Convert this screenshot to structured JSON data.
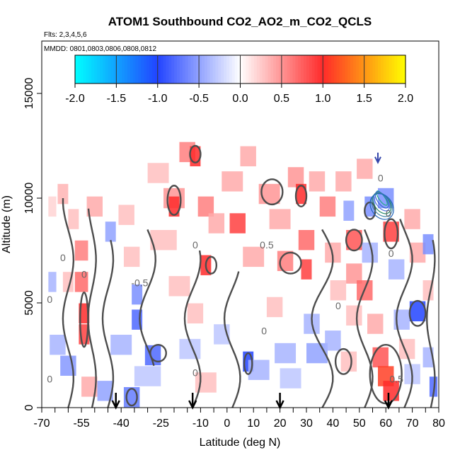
{
  "chart_data": {
    "type": "heatmap",
    "title": "ATOM1 Southbound CO2_AO2_m_CO2_QCLS",
    "subtitle_flights": "Flts: 2,3,4,5,6",
    "subtitle_dates": "MMDD: 0801,0803,0806,0808,0812",
    "xlabel": "Latitude (deg N)",
    "ylabel": "Altitude (m)",
    "xlim": [
      -70,
      80
    ],
    "ylim": [
      0,
      17500
    ],
    "x_ticks": [
      "-70",
      "-55",
      "-40",
      "-25",
      "-10",
      "0",
      "10",
      "20",
      "30",
      "40",
      "50",
      "60",
      "70",
      "80"
    ],
    "x_tick_values": [
      -70,
      -55,
      -40,
      -25,
      -10,
      0,
      10,
      20,
      30,
      40,
      50,
      60,
      70,
      80
    ],
    "x_minor_ticks": [
      -65,
      -60,
      -50,
      -45,
      -35,
      -30,
      -20,
      -15,
      -5,
      5,
      15,
      25,
      35,
      45,
      55,
      65,
      75
    ],
    "y_ticks": [
      "0",
      "5000",
      "10000",
      "15000"
    ],
    "y_tick_values": [
      0,
      5000,
      10000,
      15000
    ],
    "colorbar": {
      "range": [
        -2.0,
        2.0
      ],
      "tick_labels": [
        "-2.0",
        "-1.5",
        "-1.0",
        "-0.5",
        "0.0",
        "0.5",
        "1.0",
        "1.5",
        "2.0"
      ],
      "tick_values": [
        -2.0,
        -1.5,
        -1.0,
        -0.5,
        0.0,
        0.5,
        1.0,
        1.5,
        2.0
      ],
      "colors": [
        "#00ffff",
        "#2244ff",
        "#ffffff",
        "#ff2a2a",
        "#ffff00"
      ]
    },
    "contour_labels": [
      {
        "text": "0",
        "lat": -62,
        "alt": 7000
      },
      {
        "text": "0",
        "lat": -67,
        "alt": 5000
      },
      {
        "text": "0",
        "lat": -67,
        "alt": 1200
      },
      {
        "text": "0",
        "lat": -54,
        "alt": 6200
      },
      {
        "text": "-0.5",
        "lat": -33,
        "alt": 5800
      },
      {
        "text": "0",
        "lat": -12,
        "alt": 7600
      },
      {
        "text": "0",
        "lat": -12,
        "alt": 1500
      },
      {
        "text": "0",
        "lat": 14,
        "alt": 3500
      },
      {
        "text": "0.5",
        "lat": 15,
        "alt": 7600
      },
      {
        "text": "0",
        "lat": 42,
        "alt": 4700
      },
      {
        "text": "0",
        "lat": 58,
        "alt": 10800
      },
      {
        "text": "0",
        "lat": 62,
        "alt": 7200
      },
      {
        "text": "0",
        "lat": 61,
        "alt": 9100
      },
      {
        "text": "0.5",
        "lat": 64,
        "alt": 1200
      }
    ],
    "flight_arrows_lat": [
      -42,
      -13,
      20,
      61
    ],
    "upper_arrow": {
      "lat": 57,
      "alt": 11700
    },
    "cells": [
      {
        "lat": -66,
        "alt": 9600,
        "w": 3,
        "v": 0.2
      },
      {
        "lat": -62,
        "alt": 10200,
        "w": 4,
        "v": 0.35
      },
      {
        "lat": -58,
        "alt": 9000,
        "w": 4,
        "v": 0.3
      },
      {
        "lat": -55,
        "alt": 7500,
        "w": 5,
        "v": 0.6
      },
      {
        "lat": -55,
        "alt": 6000,
        "w": 5,
        "v": 0.7
      },
      {
        "lat": -54,
        "alt": 4500,
        "w": 4,
        "v": 1.0
      },
      {
        "lat": -54,
        "alt": 3500,
        "w": 4,
        "v": 0.9
      },
      {
        "lat": -60,
        "alt": 6000,
        "w": 4,
        "v": 0.3
      },
      {
        "lat": -66,
        "alt": 6000,
        "w": 3,
        "v": -0.4
      },
      {
        "lat": -64,
        "alt": 3000,
        "w": 6,
        "v": -0.4
      },
      {
        "lat": -60,
        "alt": 2000,
        "w": 6,
        "v": -0.55
      },
      {
        "lat": -52,
        "alt": 1000,
        "w": 6,
        "v": 0.4
      },
      {
        "lat": -46,
        "alt": 800,
        "w": 6,
        "v": -0.5
      },
      {
        "lat": -50,
        "alt": 9600,
        "w": 6,
        "v": 0.4
      },
      {
        "lat": -44,
        "alt": 8400,
        "w": 4,
        "v": -0.5
      },
      {
        "lat": -38,
        "alt": 9200,
        "w": 6,
        "v": 0.3
      },
      {
        "lat": -36,
        "alt": 7200,
        "w": 6,
        "v": 0.3
      },
      {
        "lat": -34,
        "alt": 5400,
        "w": 4,
        "v": -0.6
      },
      {
        "lat": -34,
        "alt": 4200,
        "w": 4,
        "v": -0.8
      },
      {
        "lat": -40,
        "alt": 3000,
        "w": 8,
        "v": -0.4
      },
      {
        "lat": -28,
        "alt": 2500,
        "w": 6,
        "v": -0.8
      },
      {
        "lat": -30,
        "alt": 1500,
        "w": 10,
        "v": -0.3
      },
      {
        "lat": -36,
        "alt": 500,
        "w": 6,
        "v": -0.7
      },
      {
        "lat": -26,
        "alt": 11200,
        "w": 8,
        "v": 0.3
      },
      {
        "lat": -20,
        "alt": 10000,
        "w": 8,
        "v": 0.5
      },
      {
        "lat": -20,
        "alt": 9600,
        "w": 4,
        "v": 1.0
      },
      {
        "lat": -24,
        "alt": 8000,
        "w": 10,
        "v": 0.3
      },
      {
        "lat": -18,
        "alt": 5800,
        "w": 8,
        "v": 0.3
      },
      {
        "lat": -15,
        "alt": 12200,
        "w": 6,
        "v": 0.6
      },
      {
        "lat": -12,
        "alt": 12000,
        "w": 4,
        "v": 1.0
      },
      {
        "lat": -8,
        "alt": 9600,
        "w": 6,
        "v": 0.6
      },
      {
        "lat": -4,
        "alt": 8800,
        "w": 6,
        "v": 0.4
      },
      {
        "lat": -8,
        "alt": 6800,
        "w": 4,
        "v": 1.0
      },
      {
        "lat": -12,
        "alt": 4500,
        "w": 6,
        "v": 0.3
      },
      {
        "lat": -14,
        "alt": 2800,
        "w": 8,
        "v": -0.3
      },
      {
        "lat": -8,
        "alt": 1200,
        "w": 8,
        "v": 0.3
      },
      {
        "lat": -2,
        "alt": 3500,
        "w": 6,
        "v": -0.3
      },
      {
        "lat": 2,
        "alt": 10800,
        "w": 8,
        "v": 0.4
      },
      {
        "lat": 4,
        "alt": 8800,
        "w": 6,
        "v": 0.9
      },
      {
        "lat": 8,
        "alt": 12000,
        "w": 6,
        "v": 0.4
      },
      {
        "lat": 10,
        "alt": 7200,
        "w": 8,
        "v": 0.4
      },
      {
        "lat": 8,
        "alt": 2200,
        "w": 4,
        "v": -1.0
      },
      {
        "lat": 12,
        "alt": 1800,
        "w": 8,
        "v": -0.4
      },
      {
        "lat": 16,
        "alt": 10200,
        "w": 8,
        "v": 0.5
      },
      {
        "lat": 20,
        "alt": 9000,
        "w": 8,
        "v": 0.4
      },
      {
        "lat": 22,
        "alt": 7000,
        "w": 6,
        "v": 0.6
      },
      {
        "lat": 18,
        "alt": 4800,
        "w": 6,
        "v": 0.3
      },
      {
        "lat": 22,
        "alt": 2600,
        "w": 8,
        "v": -0.4
      },
      {
        "lat": 24,
        "alt": 1400,
        "w": 8,
        "v": -0.3
      },
      {
        "lat": 26,
        "alt": 11000,
        "w": 6,
        "v": 0.5
      },
      {
        "lat": 28,
        "alt": 10200,
        "w": 4,
        "v": 1.0
      },
      {
        "lat": 30,
        "alt": 8000,
        "w": 6,
        "v": 0.7
      },
      {
        "lat": 30,
        "alt": 6600,
        "w": 4,
        "v": 0.9
      },
      {
        "lat": 32,
        "alt": 4000,
        "w": 6,
        "v": -0.4
      },
      {
        "lat": 34,
        "alt": 2600,
        "w": 8,
        "v": -0.5
      },
      {
        "lat": 34,
        "alt": 10800,
        "w": 6,
        "v": 0.4
      },
      {
        "lat": 38,
        "alt": 9600,
        "w": 6,
        "v": 0.6
      },
      {
        "lat": 40,
        "alt": 7400,
        "w": 6,
        "v": 0.4
      },
      {
        "lat": 42,
        "alt": 5600,
        "w": 6,
        "v": 0.3
      },
      {
        "lat": 40,
        "alt": 3200,
        "w": 6,
        "v": -0.4
      },
      {
        "lat": 44,
        "alt": 10800,
        "w": 6,
        "v": 0.4
      },
      {
        "lat": 46,
        "alt": 9400,
        "w": 4,
        "v": -0.5
      },
      {
        "lat": 48,
        "alt": 8000,
        "w": 6,
        "v": 0.8
      },
      {
        "lat": 48,
        "alt": 6400,
        "w": 6,
        "v": 0.5
      },
      {
        "lat": 48,
        "alt": 4400,
        "w": 6,
        "v": 0.3
      },
      {
        "lat": 46,
        "alt": 2200,
        "w": 6,
        "v": 0.3
      },
      {
        "lat": 52,
        "alt": 11400,
        "w": 6,
        "v": 0.4
      },
      {
        "lat": 54,
        "alt": 9600,
        "w": 4,
        "v": -0.6
      },
      {
        "lat": 54,
        "alt": 7400,
        "w": 6,
        "v": -0.4
      },
      {
        "lat": 52,
        "alt": 5600,
        "w": 6,
        "v": 0.7
      },
      {
        "lat": 56,
        "alt": 4000,
        "w": 6,
        "v": 0.4
      },
      {
        "lat": 58,
        "alt": 2400,
        "w": 6,
        "v": 0.8
      },
      {
        "lat": 60,
        "alt": 1500,
        "w": 6,
        "v": 1.1
      },
      {
        "lat": 62,
        "alt": 800,
        "w": 6,
        "v": 1.0
      },
      {
        "lat": 60,
        "alt": 10000,
        "w": 6,
        "v": -0.6
      },
      {
        "lat": 62,
        "alt": 8400,
        "w": 6,
        "v": 0.9
      },
      {
        "lat": 64,
        "alt": 6600,
        "w": 6,
        "v": -0.4
      },
      {
        "lat": 66,
        "alt": 4200,
        "w": 6,
        "v": -0.4
      },
      {
        "lat": 68,
        "alt": 2800,
        "w": 6,
        "v": 0.3
      },
      {
        "lat": 70,
        "alt": 9000,
        "w": 6,
        "v": 0.4
      },
      {
        "lat": 72,
        "alt": 7400,
        "w": 6,
        "v": 0.4
      },
      {
        "lat": 72,
        "alt": 4600,
        "w": 6,
        "v": -1.0
      },
      {
        "lat": 70,
        "alt": 1600,
        "w": 6,
        "v": -0.3
      },
      {
        "lat": 76,
        "alt": 7800,
        "w": 4,
        "v": -0.6
      },
      {
        "lat": 76,
        "alt": 5600,
        "w": 4,
        "v": 0.3
      },
      {
        "lat": 76,
        "alt": 2400,
        "w": 4,
        "v": -0.4
      },
      {
        "lat": 78,
        "alt": 1000,
        "w": 3,
        "v": -0.8
      }
    ]
  }
}
